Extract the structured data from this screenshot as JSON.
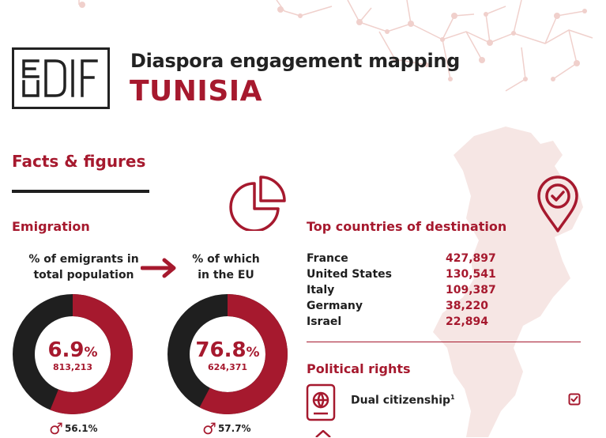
{
  "header": {
    "logo_text": "EUDIF",
    "title": "Diaspora engagement mapping",
    "country": "TUNISIA"
  },
  "section": {
    "title": "Facts & figures"
  },
  "emigration": {
    "heading": "Emigration",
    "total": {
      "caption_line1": "% of emigrants in",
      "caption_line2": "total population",
      "percent": "6.9",
      "percent_unit": "%",
      "count": "813,213",
      "male_share": "56.1%",
      "fill_fraction": 0.561
    },
    "eu": {
      "caption_line1": "% of which",
      "caption_line2": "in the EU",
      "percent": "76.8",
      "percent_unit": "%",
      "count": "624,371",
      "male_share": "57.7%",
      "fill_fraction": 0.577
    }
  },
  "destinations": {
    "heading": "Top countries of destination",
    "rows": [
      {
        "country": "France",
        "value": "427,897"
      },
      {
        "country": "United States",
        "value": "130,541"
      },
      {
        "country": "Italy",
        "value": "109,387"
      },
      {
        "country": "Germany",
        "value": "38,220"
      },
      {
        "country": "Israel",
        "value": "22,894"
      }
    ]
  },
  "political_rights": {
    "heading": "Political rights",
    "items": [
      {
        "label": "Dual citizenship",
        "footnote": "1",
        "checked": true
      }
    ]
  },
  "colors": {
    "accent": "#a6192e",
    "dark": "#1f1f1f",
    "map": "#f6e6e4"
  },
  "icons": [
    "eudif-logo",
    "pie-chart-icon",
    "arrow-right-icon",
    "location-check-icon",
    "passport-icon",
    "checkbox-icon",
    "male-symbol-icon",
    "tunisia-map"
  ]
}
